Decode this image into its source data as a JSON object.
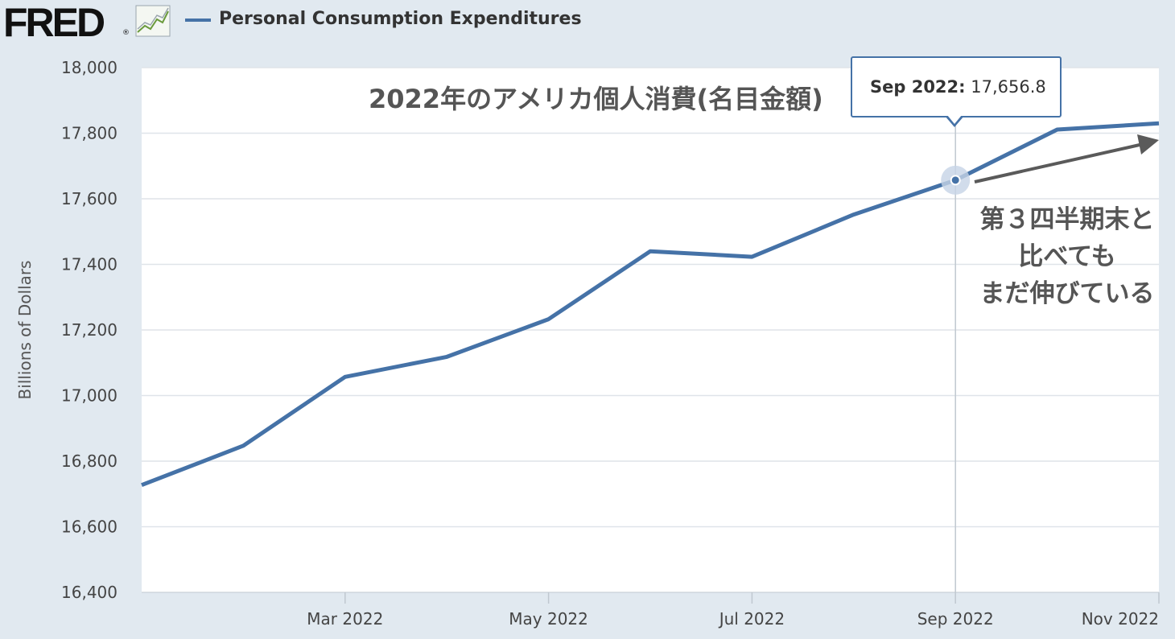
{
  "header": {
    "logo_text": "FRED",
    "logo_mark": "®",
    "legend_label": "Personal Consumption Expenditures",
    "series_color": "#4572a7"
  },
  "tooltip": {
    "date": "Sep 2022:",
    "value": "17,656.8"
  },
  "annotations": {
    "title": "2022年のアメリカ個人消費(名目金額)",
    "note_lines": [
      "第３四半期末と",
      "比べても",
      "まだ伸びている"
    ]
  },
  "chart_data": {
    "type": "line",
    "series": [
      {
        "name": "Personal Consumption Expenditures",
        "x": [
          "Jan 2022",
          "Feb 2022",
          "Mar 2022",
          "Apr 2022",
          "May 2022",
          "Jun 2022",
          "Jul 2022",
          "Aug 2022",
          "Sep 2022",
          "Oct 2022",
          "Nov 2022"
        ],
        "values": [
          16727,
          16847,
          17057,
          17118,
          17233,
          17440,
          17423,
          17552,
          17656.8,
          17811,
          17830
        ]
      }
    ],
    "ylabel": "Billions of Dollars",
    "ylim": [
      16400,
      18000
    ],
    "yticks": [
      16400,
      16600,
      16800,
      17000,
      17200,
      17400,
      17600,
      17800,
      18000
    ],
    "ytick_labels": [
      "16,400",
      "16,600",
      "16,800",
      "17,000",
      "17,200",
      "17,400",
      "17,600",
      "17,800",
      "18,000"
    ],
    "xtick_labels": [
      "Mar 2022",
      "May 2022",
      "Jul 2022",
      "Sep 2022",
      "Nov 2022"
    ],
    "xtick_indices": [
      2,
      4,
      6,
      8,
      10
    ],
    "highlight_index": 8,
    "grid": true
  }
}
